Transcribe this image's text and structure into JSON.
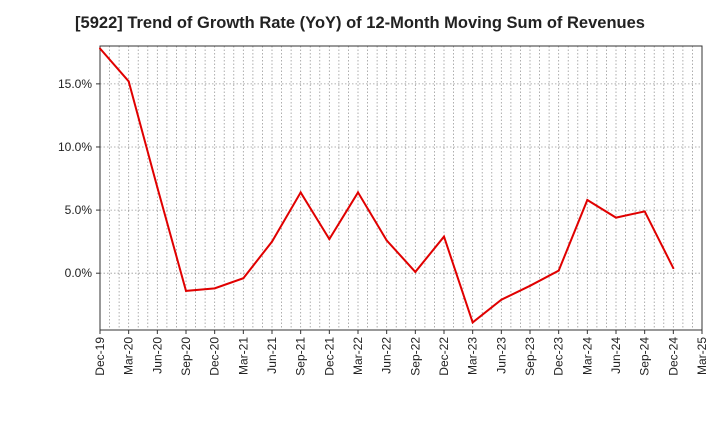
{
  "chart_data": {
    "type": "line",
    "title": "[5922]  Trend of Growth Rate (YoY) of 12-Month Moving Sum of Revenues",
    "xlabel": "",
    "ylabel": "",
    "x_tick_labels": [
      "Dec-19",
      "Mar-20",
      "Jun-20",
      "Sep-20",
      "Dec-20",
      "Mar-21",
      "Jun-21",
      "Sep-21",
      "Dec-21",
      "Mar-22",
      "Jun-22",
      "Sep-22",
      "Dec-22",
      "Mar-23",
      "Jun-23",
      "Sep-23",
      "Dec-23",
      "Mar-24",
      "Jun-24",
      "Sep-24",
      "Dec-24",
      "Mar-25"
    ],
    "y_ticks": [
      0,
      5,
      10,
      15
    ],
    "y_tick_labels": [
      "0.0%",
      "5.0%",
      "10.0%",
      "15.0%"
    ],
    "ylim": [
      -4.5,
      18.0
    ],
    "grid": true,
    "line_color": "#e00000",
    "series": [
      {
        "x": [
          "Dec-19",
          "Mar-20",
          "Jun-20",
          "Sep-20",
          "Dec-20",
          "Mar-21",
          "Jun-21",
          "Sep-21",
          "Dec-21",
          "Mar-22",
          "Jun-22",
          "Sep-22",
          "Dec-22",
          "Mar-23",
          "Jun-23",
          "Sep-23",
          "Dec-23",
          "Mar-24",
          "Jun-24",
          "Sep-24",
          "Dec-24"
        ],
        "values": [
          17.8,
          15.2,
          6.8,
          -1.4,
          -1.2,
          -0.4,
          2.5,
          6.4,
          2.7,
          6.4,
          2.6,
          0.1,
          2.9,
          -3.9,
          -2.1,
          -1.0,
          0.2,
          5.8,
          4.4,
          4.9,
          0.4
        ]
      }
    ]
  }
}
